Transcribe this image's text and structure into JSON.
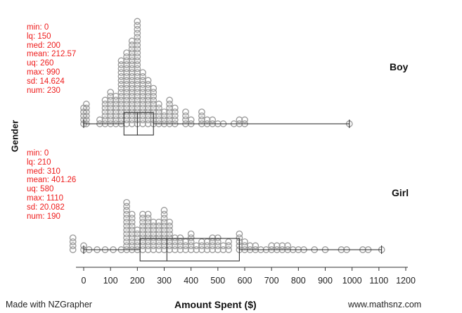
{
  "footer": {
    "credit": "Made with NZGrapher",
    "website": "www.mathsnz.com"
  },
  "chart_data": {
    "type": "scatter",
    "subtype": "stacked-dot-plot-with-boxplot",
    "title": "",
    "xlabel": "Amount Spent ($)",
    "ylabel": "Gender",
    "xlim": [
      0,
      1200
    ],
    "x_ticks": [
      "0",
      "100",
      "200",
      "300",
      "400",
      "500",
      "600",
      "700",
      "800",
      "900",
      "1000",
      "1100",
      "1200"
    ],
    "series_colors": {
      "dot_stroke": "#999999",
      "stats_text": "#ee1c1c",
      "box_line": "#222222"
    },
    "groups": [
      {
        "name": "Boy",
        "stats": {
          "min": "min: 0",
          "lq": "lq: 150",
          "med": "med: 200",
          "mean": "mean: 212.57",
          "uq": "uq: 260",
          "max": "max: 990",
          "sd": "sd: 14.624",
          "num": "num: 230"
        },
        "box": {
          "min": 0,
          "lq": 150,
          "median": 200,
          "uq": 260,
          "max": 990
        },
        "dots": [
          {
            "x": 0,
            "count": 5
          },
          {
            "x": 10,
            "count": 6
          },
          {
            "x": 60,
            "count": 2
          },
          {
            "x": 80,
            "count": 7
          },
          {
            "x": 100,
            "count": 9
          },
          {
            "x": 120,
            "count": 8
          },
          {
            "x": 140,
            "count": 17
          },
          {
            "x": 160,
            "count": 19
          },
          {
            "x": 180,
            "count": 22
          },
          {
            "x": 200,
            "count": 27
          },
          {
            "x": 220,
            "count": 14
          },
          {
            "x": 240,
            "count": 12
          },
          {
            "x": 260,
            "count": 10
          },
          {
            "x": 280,
            "count": 6
          },
          {
            "x": 300,
            "count": 4
          },
          {
            "x": 320,
            "count": 7
          },
          {
            "x": 340,
            "count": 5
          },
          {
            "x": 380,
            "count": 4
          },
          {
            "x": 400,
            "count": 2
          },
          {
            "x": 440,
            "count": 4
          },
          {
            "x": 460,
            "count": 2
          },
          {
            "x": 480,
            "count": 2
          },
          {
            "x": 500,
            "count": 1
          },
          {
            "x": 520,
            "count": 1
          },
          {
            "x": 560,
            "count": 1
          },
          {
            "x": 580,
            "count": 2
          },
          {
            "x": 600,
            "count": 2
          },
          {
            "x": 990,
            "count": 1
          }
        ]
      },
      {
        "name": "Girl",
        "stats": {
          "min": "min: 0",
          "lq": "lq: 210",
          "med": "med: 310",
          "mean": "mean: 401.26",
          "uq": "uq: 580",
          "max": "max: 1110",
          "sd": "sd: 20.082",
          "num": "num: 190"
        },
        "box": {
          "min": 0,
          "lq": 210,
          "median": 310,
          "uq": 580,
          "max": 1110
        },
        "dots": [
          {
            "x": -40,
            "count": 4
          },
          {
            "x": 0,
            "count": 2
          },
          {
            "x": 20,
            "count": 1
          },
          {
            "x": 50,
            "count": 1
          },
          {
            "x": 80,
            "count": 1
          },
          {
            "x": 110,
            "count": 1
          },
          {
            "x": 140,
            "count": 1
          },
          {
            "x": 160,
            "count": 13
          },
          {
            "x": 180,
            "count": 10
          },
          {
            "x": 200,
            "count": 6
          },
          {
            "x": 220,
            "count": 10
          },
          {
            "x": 240,
            "count": 10
          },
          {
            "x": 260,
            "count": 8
          },
          {
            "x": 280,
            "count": 8
          },
          {
            "x": 300,
            "count": 11
          },
          {
            "x": 320,
            "count": 8
          },
          {
            "x": 340,
            "count": 4
          },
          {
            "x": 360,
            "count": 4
          },
          {
            "x": 380,
            "count": 3
          },
          {
            "x": 400,
            "count": 5
          },
          {
            "x": 420,
            "count": 2
          },
          {
            "x": 440,
            "count": 3
          },
          {
            "x": 460,
            "count": 3
          },
          {
            "x": 480,
            "count": 4
          },
          {
            "x": 500,
            "count": 4
          },
          {
            "x": 520,
            "count": 2
          },
          {
            "x": 540,
            "count": 3
          },
          {
            "x": 580,
            "count": 5
          },
          {
            "x": 600,
            "count": 3
          },
          {
            "x": 620,
            "count": 2
          },
          {
            "x": 640,
            "count": 2
          },
          {
            "x": 660,
            "count": 1
          },
          {
            "x": 680,
            "count": 1
          },
          {
            "x": 700,
            "count": 2
          },
          {
            "x": 720,
            "count": 2
          },
          {
            "x": 740,
            "count": 2
          },
          {
            "x": 760,
            "count": 2
          },
          {
            "x": 780,
            "count": 1
          },
          {
            "x": 800,
            "count": 1
          },
          {
            "x": 820,
            "count": 1
          },
          {
            "x": 860,
            "count": 1
          },
          {
            "x": 900,
            "count": 1
          },
          {
            "x": 960,
            "count": 1
          },
          {
            "x": 980,
            "count": 1
          },
          {
            "x": 1040,
            "count": 1
          },
          {
            "x": 1060,
            "count": 1
          },
          {
            "x": 1110,
            "count": 1
          }
        ]
      }
    ]
  }
}
